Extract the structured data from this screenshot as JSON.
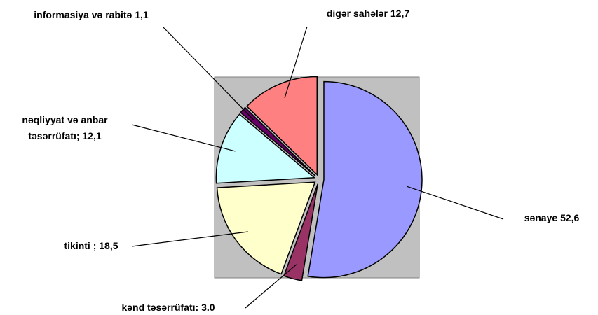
{
  "chart_data": {
    "type": "pie",
    "categories": [
      "sənaye",
      "kənd təsərrüfatı:",
      "tikinti ;",
      "nəqliyyat və anbar təsərrüfatı;",
      "informasiya və rabitə",
      "digər sahələr"
    ],
    "values": [
      52.6,
      3.0,
      18.5,
      12.1,
      1.1,
      12.7
    ],
    "value_labels": [
      "52,6",
      "3.0",
      "18,5",
      "12,1",
      "1,1",
      "12,7"
    ],
    "colors": [
      "#9999ff",
      "#993366",
      "#ffffcc",
      "#ccffff",
      "#660066",
      "#ff8080"
    ]
  }
}
